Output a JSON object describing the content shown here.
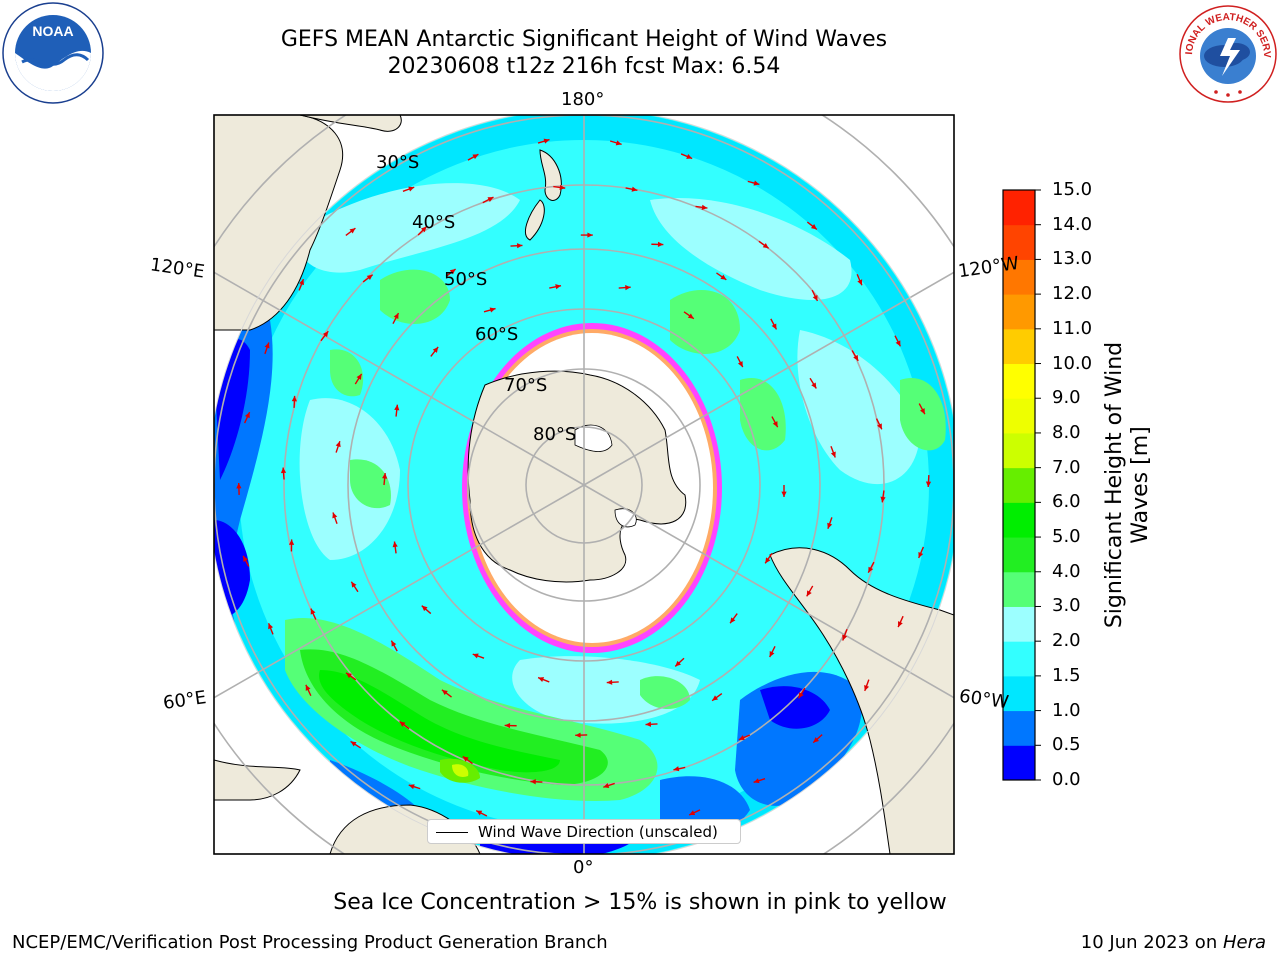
{
  "title": {
    "line1": "GEFS MEAN Antarctic Significant Height of Wind Waves",
    "line2": "20230608 t12z 216h fcst   Max: 6.54"
  },
  "logos": {
    "left": "NOAA",
    "right": "NATIONAL WEATHER SERVICE"
  },
  "map": {
    "projection": "south polar stereographic",
    "lon_labels": [
      "180°",
      "120°E",
      "120°W",
      "60°E",
      "60°W",
      "0°"
    ],
    "lat_labels": [
      "30°S",
      "40°S",
      "50°S",
      "60°S",
      "70°S",
      "80°S"
    ],
    "legend_label": "Wind Wave Direction (unscaled)",
    "arrow_color": "#e00000",
    "land_color": "#eeeadb",
    "ice_colors": [
      "#ff44ff",
      "#ffaa00",
      "#ffff66"
    ]
  },
  "colorbar": {
    "label": "Significant Height of Wind Waves [m]",
    "label_line1": "Significant Height of Wind",
    "label_line2": "Waves [m]",
    "ticks": [
      "0.0",
      "0.5",
      "1.0",
      "1.5",
      "2.0",
      "3.0",
      "4.0",
      "5.0",
      "6.0",
      "7.0",
      "8.0",
      "9.0",
      "10.0",
      "11.0",
      "12.0",
      "13.0",
      "14.0",
      "15.0"
    ],
    "colors": [
      "#0000ff",
      "#0077ff",
      "#00e7ff",
      "#33ffff",
      "#9cffff",
      "#55ff77",
      "#22ee22",
      "#00ee00",
      "#66ee00",
      "#ccff00",
      "#eeff00",
      "#ffff00",
      "#ffcc00",
      "#ff9900",
      "#ff7700",
      "#ff4400",
      "#ff2200"
    ]
  },
  "footer": {
    "ice_note": "Sea Ice Concentration > 15% is shown in pink to yellow",
    "left": "NCEP/EMC/Verification Post Processing Product Generation Branch",
    "right_date": "10 Jun 2023 on ",
    "right_host": "Hera"
  }
}
